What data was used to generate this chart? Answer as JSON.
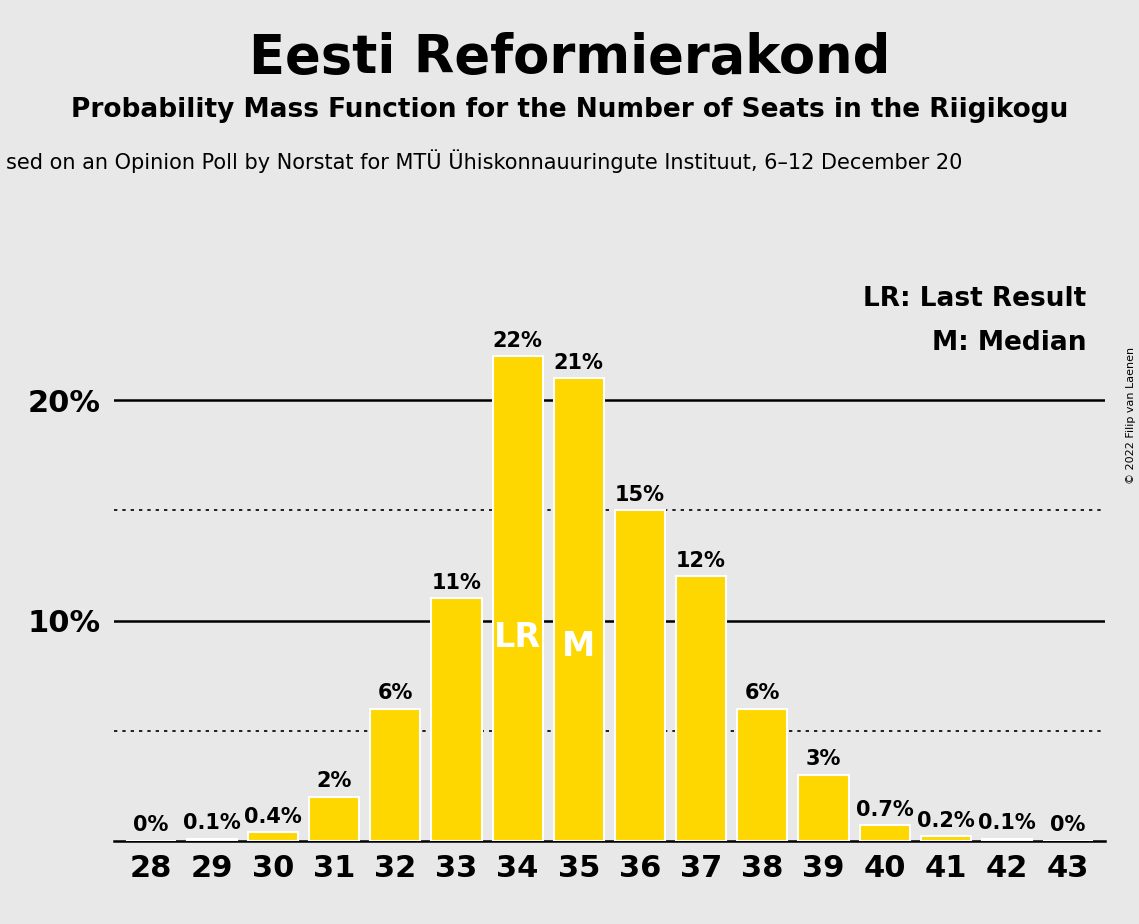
{
  "title": "Eesti Reformierakond",
  "subtitle": "Probability Mass Function for the Number of Seats in the Riigikogu",
  "source_line": "sed on an Opinion Poll by Norstat for MTÜ Ühiskonnauuringute Instituut, 6–12 December 20",
  "copyright": "© 2022 Filip van Laenen",
  "seats": [
    28,
    29,
    30,
    31,
    32,
    33,
    34,
    35,
    36,
    37,
    38,
    39,
    40,
    41,
    42,
    43
  ],
  "probabilities": [
    0.0,
    0.1,
    0.4,
    2.0,
    6.0,
    11.0,
    22.0,
    21.0,
    15.0,
    12.0,
    6.0,
    3.0,
    0.7,
    0.2,
    0.1,
    0.0
  ],
  "bar_color": "#FFD700",
  "bar_edge_color": "#FFFFFF",
  "background_color": "#E8E8E8",
  "last_result_seat": 34,
  "median_seat": 35,
  "lr_label": "LR",
  "m_label": "M",
  "lr_legend": "LR: Last Result",
  "m_legend": "M: Median",
  "solid_grid_lines": [
    10.0,
    20.0
  ],
  "dotted_grid_lines": [
    5.0,
    15.0
  ],
  "title_fontsize": 38,
  "subtitle_fontsize": 19,
  "source_fontsize": 15,
  "bar_label_fontsize": 15,
  "axis_tick_fontsize": 22,
  "legend_fontsize": 19,
  "inbar_label_fontsize": 24,
  "ytick_fontsize": 22
}
